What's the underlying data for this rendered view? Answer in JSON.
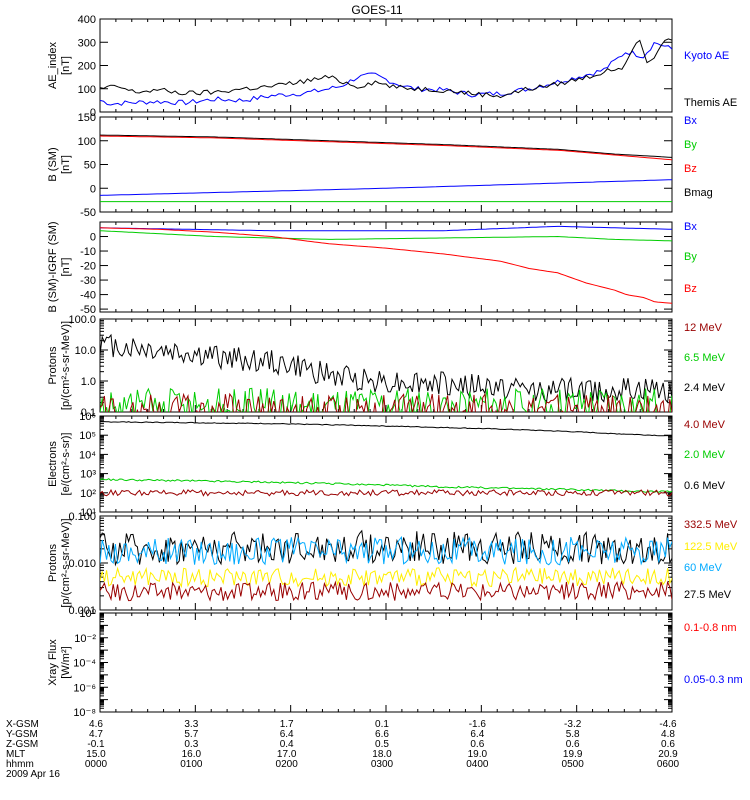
{
  "title": "GOES-11",
  "colors": {
    "black": "#000000",
    "blue": "#0000ff",
    "green": "#00cc00",
    "red": "#ff0000",
    "darkred": "#990000",
    "yellow": "#ffee00",
    "cyan": "#00aaff"
  },
  "chart_data": [
    {
      "type": "line",
      "id": "ae",
      "ylabel": [
        "AE_index",
        "[nT]"
      ],
      "ylim": [
        0,
        400
      ],
      "log": false,
      "ticks": [
        0,
        100,
        200,
        300,
        400
      ],
      "tick_labels": [
        "0",
        "100",
        "200",
        "300",
        "400"
      ],
      "legend": [
        {
          "label": "Kyoto AE",
          "color": "blue"
        },
        {
          "label": "Themis AE",
          "color": "black"
        }
      ],
      "series": [
        {
          "name": "Kyoto AE",
          "color": "blue",
          "x": [
            0,
            0.02,
            0.05,
            0.1,
            0.15,
            0.2,
            0.25,
            0.3,
            0.35,
            0.38,
            0.42,
            0.45,
            0.48,
            0.52,
            0.55,
            0.6,
            0.65,
            0.7,
            0.75,
            0.8,
            0.85,
            0.88,
            0.9,
            0.92,
            0.95,
            0.97,
            1
          ],
          "y": [
            50,
            35,
            40,
            45,
            40,
            55,
            50,
            70,
            80,
            90,
            110,
            150,
            160,
            120,
            100,
            95,
            75,
            80,
            100,
            130,
            160,
            180,
            220,
            260,
            240,
            300,
            270
          ]
        },
        {
          "name": "Themis AE",
          "color": "black",
          "x": [
            0,
            0.03,
            0.06,
            0.1,
            0.15,
            0.2,
            0.25,
            0.3,
            0.35,
            0.4,
            0.45,
            0.48,
            0.52,
            0.56,
            0.6,
            0.65,
            0.7,
            0.75,
            0.8,
            0.85,
            0.88,
            0.92,
            0.94,
            0.96,
            0.98,
            1
          ],
          "y": [
            100,
            110,
            85,
            95,
            80,
            85,
            100,
            110,
            130,
            150,
            110,
            130,
            105,
            100,
            95,
            80,
            70,
            100,
            120,
            150,
            170,
            200,
            320,
            200,
            290,
            310
          ]
        }
      ]
    },
    {
      "type": "line",
      "id": "bsm",
      "ylabel": [
        "B (SM)",
        "[nT]"
      ],
      "ylim": [
        -50,
        150
      ],
      "log": false,
      "ticks": [
        -50,
        0,
        50,
        100,
        150
      ],
      "tick_labels": [
        "-50",
        "0",
        "50",
        "100",
        "150"
      ],
      "legend": [
        {
          "label": "Bx",
          "color": "blue"
        },
        {
          "label": "By",
          "color": "green"
        },
        {
          "label": "Bz",
          "color": "red"
        },
        {
          "label": "Bmag",
          "color": "black"
        }
      ],
      "series": [
        {
          "name": "Bmag",
          "color": "black",
          "x": [
            0,
            0.2,
            0.4,
            0.6,
            0.8,
            0.9,
            1
          ],
          "y": [
            112,
            108,
            100,
            92,
            82,
            72,
            65
          ]
        },
        {
          "name": "Bz",
          "color": "red",
          "x": [
            0,
            0.2,
            0.4,
            0.6,
            0.8,
            0.9,
            1
          ],
          "y": [
            110,
            106,
            98,
            90,
            80,
            70,
            60
          ]
        },
        {
          "name": "Bx",
          "color": "blue",
          "x": [
            0,
            0.5,
            1
          ],
          "y": [
            -15,
            0,
            18
          ]
        },
        {
          "name": "By",
          "color": "green",
          "x": [
            0,
            0.5,
            1
          ],
          "y": [
            -28,
            -28,
            -28
          ]
        }
      ]
    },
    {
      "type": "line",
      "id": "bdelta",
      "ylabel": [
        "B (SM)-IGRF (SM)",
        "[nT]"
      ],
      "ylim": [
        -52,
        10
      ],
      "log": false,
      "ticks": [
        -50,
        -40,
        -30,
        -20,
        -10,
        0
      ],
      "tick_labels": [
        "-50",
        "-40",
        "-30",
        "-20",
        "-10",
        "0"
      ],
      "legend": [
        {
          "label": "Bx",
          "color": "blue"
        },
        {
          "label": "By",
          "color": "green"
        },
        {
          "label": "Bz",
          "color": "red"
        }
      ],
      "series": [
        {
          "name": "Bx",
          "color": "blue",
          "x": [
            0,
            0.3,
            0.6,
            0.8,
            0.9,
            1
          ],
          "y": [
            6,
            4,
            4,
            7,
            6,
            5
          ]
        },
        {
          "name": "By",
          "color": "green",
          "x": [
            0,
            0.2,
            0.4,
            0.6,
            0.8,
            0.9,
            1
          ],
          "y": [
            4,
            0,
            -2,
            -1,
            0,
            -2,
            -3
          ]
        },
        {
          "name": "Bz",
          "color": "red",
          "x": [
            0,
            0.1,
            0.2,
            0.3,
            0.4,
            0.5,
            0.6,
            0.7,
            0.75,
            0.8,
            0.85,
            0.88,
            0.9,
            0.92,
            0.95,
            0.97,
            1
          ],
          "y": [
            6,
            5,
            3,
            0,
            -5,
            -8,
            -12,
            -17,
            -22,
            -25,
            -32,
            -35,
            -37,
            -40,
            -42,
            -45,
            -46
          ]
        }
      ]
    },
    {
      "type": "line",
      "id": "protons1",
      "ylabel": [
        "Protons",
        "[p/(cm²-s-sr-MeV)]"
      ],
      "ylim": [
        0.1,
        100
      ],
      "log": true,
      "ticks": [
        0.1,
        1,
        10,
        100
      ],
      "tick_labels": [
        "0.1",
        "1.0",
        "10.0",
        "100.0"
      ],
      "legend": [
        {
          "label": "12 MeV",
          "color": "darkred"
        },
        {
          "label": "6.5 MeV",
          "color": "green"
        },
        {
          "label": "2.4 MeV",
          "color": "black"
        }
      ],
      "series": [
        {
          "name": "2.4 MeV",
          "color": "black",
          "noise": 0.4,
          "x": [
            0,
            0.1,
            0.2,
            0.3,
            0.4,
            0.5,
            0.6,
            0.7,
            0.8,
            0.9,
            1
          ],
          "y": [
            15,
            10,
            6,
            4,
            1.5,
            1,
            0.8,
            0.6,
            0.5,
            0.5,
            0.5
          ]
        },
        {
          "name": "6.5 MeV",
          "color": "green",
          "noise": 0.6,
          "x": [
            0,
            0.5,
            1
          ],
          "y": [
            0.15,
            0.15,
            0.15
          ]
        },
        {
          "name": "12 MeV",
          "color": "darkred",
          "noise": 0.5,
          "x": [
            0,
            0.5,
            1
          ],
          "y": [
            0.12,
            0.12,
            0.12
          ]
        }
      ]
    },
    {
      "type": "line",
      "id": "electrons",
      "ylabel": [
        "Electrons",
        "[e/(cm²-s-sr)]"
      ],
      "ylim": [
        10,
        1000000
      ],
      "log": true,
      "ticks": [
        10,
        100,
        1000,
        10000,
        100000,
        1000000
      ],
      "tick_labels": [
        "10¹",
        "10²",
        "10³",
        "10⁴",
        "10⁵",
        "10⁶"
      ],
      "legend": [
        {
          "label": "4.0 MeV",
          "color": "darkred"
        },
        {
          "label": "2.0 MeV",
          "color": "green"
        },
        {
          "label": "0.6 MeV",
          "color": "black"
        }
      ],
      "series": [
        {
          "name": "0.6 MeV",
          "color": "black",
          "noise": 0.02,
          "x": [
            0,
            0.3,
            0.6,
            0.9,
            1
          ],
          "y": [
            500000,
            400000,
            250000,
            120000,
            90000
          ]
        },
        {
          "name": "2.0 MeV",
          "color": "green",
          "noise": 0.05,
          "x": [
            0,
            0.3,
            0.6,
            0.9,
            1
          ],
          "y": [
            500,
            350,
            200,
            130,
            110
          ]
        },
        {
          "name": "4.0 MeV",
          "color": "darkred",
          "noise": 0.15,
          "x": [
            0,
            0.5,
            1
          ],
          "y": [
            100,
            100,
            100
          ]
        }
      ]
    },
    {
      "type": "line",
      "id": "protons2",
      "ylabel": [
        "Protons",
        "[p/(cm²-s-sr-MeV)]"
      ],
      "ylim": [
        0.001,
        0.1
      ],
      "log": true,
      "ticks": [
        0.001,
        0.01,
        0.1
      ],
      "tick_labels": [
        "0.001",
        "0.010",
        "0.100"
      ],
      "legend": [
        {
          "label": "332.5 MeV",
          "color": "darkred"
        },
        {
          "label": "122.5 MeV",
          "color": "yellow"
        },
        {
          "label": "60 MeV",
          "color": "cyan"
        },
        {
          "label": "27.5 MeV",
          "color": "black"
        }
      ],
      "series": [
        {
          "name": "27.5 MeV",
          "color": "black",
          "noise": 0.35,
          "x": [
            0,
            0.5,
            1
          ],
          "y": [
            0.02,
            0.022,
            0.02
          ]
        },
        {
          "name": "60 MeV",
          "color": "cyan",
          "noise": 0.3,
          "x": [
            0,
            0.5,
            1
          ],
          "y": [
            0.018,
            0.018,
            0.018
          ]
        },
        {
          "name": "122.5 MeV",
          "color": "yellow",
          "noise": 0.2,
          "x": [
            0,
            0.5,
            1
          ],
          "y": [
            0.005,
            0.005,
            0.005
          ]
        },
        {
          "name": "332.5 MeV",
          "color": "darkred",
          "noise": 0.2,
          "x": [
            0,
            0.5,
            1
          ],
          "y": [
            0.0025,
            0.0025,
            0.0025
          ]
        }
      ]
    },
    {
      "type": "line",
      "id": "xray",
      "ylabel": [
        "Xray Flux",
        "[W/m²]"
      ],
      "ylim": [
        1e-08,
        1
      ],
      "log": true,
      "ticks": [
        1e-08,
        1e-07,
        1e-06,
        1e-05,
        0.0001,
        0.001,
        0.01,
        0.1,
        1
      ],
      "tick_labels": [
        "10⁻⁸",
        "10⁻⁷",
        "10⁻⁶",
        "10⁻⁵",
        "10⁻⁴",
        "10⁻³",
        "10⁻²",
        "10⁻¹",
        "10⁰"
      ],
      "tick_label_every": 2,
      "legend": [
        {
          "label": "0.1-0.8 nm",
          "color": "red"
        },
        {
          "label": "0.05-0.3 nm",
          "color": "blue"
        }
      ],
      "series": []
    }
  ],
  "footer": {
    "rows": [
      {
        "label": "X-GSM",
        "values": [
          "4.6",
          "3.3",
          "1.7",
          "0.1",
          "-1.6",
          "-3.2",
          "-4.6"
        ]
      },
      {
        "label": "Y-GSM",
        "values": [
          "4.7",
          "5.7",
          "6.4",
          "6.6",
          "6.4",
          "5.8",
          "4.8"
        ]
      },
      {
        "label": "Z-GSM",
        "values": [
          "-0.1",
          "0.3",
          "0.4",
          "0.5",
          "0.6",
          "0.6",
          "0.6"
        ]
      },
      {
        "label": "MLT",
        "values": [
          "15.0",
          "16.0",
          "17.0",
          "18.0",
          "19.0",
          "19.9",
          "20.9"
        ]
      },
      {
        "label": "hhmm",
        "values": [
          "0000",
          "0100",
          "0200",
          "0300",
          "0400",
          "0500",
          "0600"
        ]
      }
    ],
    "date": "2009 Apr 16"
  }
}
